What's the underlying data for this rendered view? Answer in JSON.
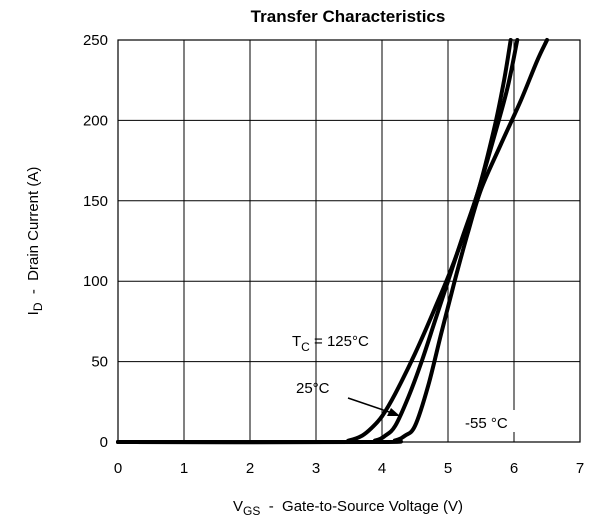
{
  "chart_data": {
    "type": "line",
    "title": "Transfer Characteristics",
    "xlabel_main": "V",
    "xlabel_sub": "GS",
    "xlabel_rest": "  -  Gate-to-Source Voltage (V)",
    "ylabel_main": "I",
    "ylabel_sub": "D",
    "ylabel_rest": "  -  Drain Current (A)",
    "xlim": [
      0,
      7
    ],
    "ylim": [
      0,
      250
    ],
    "xticks": [
      "0",
      "1",
      "2",
      "3",
      "4",
      "5",
      "6",
      "7"
    ],
    "yticks": [
      "0",
      "50",
      "100",
      "150",
      "200",
      "250"
    ],
    "grid": true,
    "series": [
      {
        "name": "TC = 125°C",
        "x": [
          0,
          3.2,
          3.5,
          3.7,
          3.85,
          4.0,
          4.2,
          4.5,
          4.8,
          5.1,
          5.45,
          5.7,
          5.85,
          5.95
        ],
        "y": [
          0,
          0,
          1,
          4,
          9,
          16,
          30,
          55,
          83,
          113,
          155,
          195,
          225,
          250
        ]
      },
      {
        "name": "25°C",
        "x": [
          0,
          3.6,
          3.9,
          4.05,
          4.2,
          4.4,
          4.6,
          4.8,
          5.0,
          5.2,
          5.45,
          5.7,
          5.9,
          6.05
        ],
        "y": [
          0,
          0,
          1,
          4,
          10,
          28,
          50,
          75,
          100,
          125,
          155,
          190,
          220,
          250
        ]
      },
      {
        "name": "-55 °C",
        "x": [
          0,
          3.9,
          4.2,
          4.35,
          4.5,
          4.7,
          4.9,
          5.1,
          5.3,
          5.5,
          5.8,
          6.1,
          6.35,
          6.5
        ],
        "y": [
          0,
          0,
          1,
          4,
          10,
          35,
          68,
          100,
          130,
          157,
          185,
          212,
          237,
          250
        ]
      }
    ],
    "annotations": {
      "tc_main": "T",
      "tc_sub": "C",
      "tc_rest": " = 125°C",
      "mid": "25°C",
      "low": "-55 °C"
    }
  }
}
